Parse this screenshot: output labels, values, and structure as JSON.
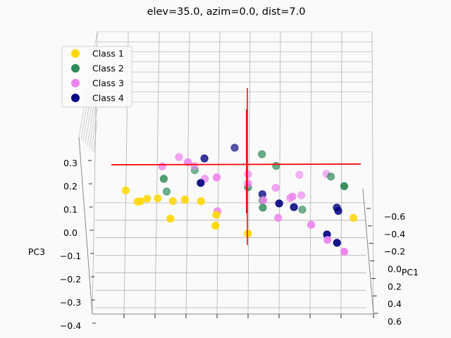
{
  "chart_data": {
    "type": "scatter",
    "projection": "3d",
    "title": "elev=35.0, azim=0.0, dist=7.0",
    "xlabel": "PC1",
    "zlabel": "PC3",
    "x_ticks": [
      "−0.6",
      "−0.4",
      "−0.2",
      "0.0",
      "0.2",
      "0.4",
      "0.6"
    ],
    "z_ticks": [
      "−0.4",
      "−0.3",
      "−0.2",
      "−0.1",
      "0.0",
      "0.1",
      "0.2",
      "0.3"
    ],
    "legend_position": "top-left",
    "colors": {
      "Class 1": "#ffd700",
      "Class 2": "#2e8b57",
      "Class 3": "#ee82ee",
      "Class 4": "#000080",
      "axis_lines": "#ff0000",
      "grid": "#b0b0b0"
    },
    "series": [
      {
        "name": "Class 1",
        "points": [
          [
            -0.05,
            -0.38,
            -0.03
          ],
          [
            0.05,
            -0.3,
            0.04
          ],
          [
            0.1,
            -0.33,
            0.06
          ],
          [
            0.05,
            -0.25,
            0.02
          ],
          [
            0.12,
            -0.35,
            0.05
          ],
          [
            0.15,
            -0.25,
            -0.06
          ],
          [
            0.3,
            -0.1,
            -0.04
          ],
          [
            0.25,
            0.0,
            -0.12
          ],
          [
            0.18,
            -0.15,
            0.08
          ],
          [
            0.2,
            -0.2,
            0.1
          ],
          [
            0.1,
            -0.4,
            0.12
          ],
          [
            0.22,
            -0.1,
            0.0
          ],
          [
            0.05,
            0.35,
            -0.1
          ]
        ]
      },
      {
        "name": "Class 2",
        "points": [
          [
            -0.15,
            0.1,
            0.18
          ],
          [
            0.05,
            -0.28,
            0.18
          ],
          [
            0.25,
            0.3,
            0.22
          ],
          [
            -0.05,
            0.05,
            -0.02
          ],
          [
            -0.25,
            -0.3,
            -0.05
          ],
          [
            -0.1,
            0.0,
            0.05
          ],
          [
            -0.3,
            -0.2,
            0.08
          ],
          [
            -0.25,
            0.2,
            -0.18
          ],
          [
            -0.18,
            0.05,
            0.25
          ],
          [
            -0.2,
            0.3,
            0.08
          ],
          [
            0.0,
            0.05,
            -0.05
          ]
        ]
      },
      {
        "name": "Class 3",
        "points": [
          [
            -0.3,
            0.0,
            0.05
          ],
          [
            -0.4,
            0.2,
            0.0
          ],
          [
            -0.28,
            -0.2,
            0.12
          ],
          [
            -0.2,
            -0.25,
            0.22
          ],
          [
            0.1,
            0.05,
            0.05
          ],
          [
            0.2,
            0.2,
            -0.08
          ],
          [
            0.22,
            0.25,
            -0.18
          ],
          [
            0.25,
            0.3,
            -0.25
          ],
          [
            -0.15,
            0.15,
            -0.05
          ],
          [
            0.05,
            -0.2,
            0.3
          ],
          [
            -0.08,
            -0.15,
            0.12
          ],
          [
            0.18,
            -0.1,
            0.25
          ],
          [
            -0.35,
            0.3,
            0.03
          ],
          [
            0.0,
            0.15,
            0.03
          ],
          [
            -0.05,
            0.0,
            0.1
          ],
          [
            0.1,
            -0.1,
            -0.03
          ],
          [
            -0.2,
            0.1,
            0.0
          ],
          [
            0.05,
            0.1,
            -0.1
          ],
          [
            -0.1,
            -0.3,
            0.2
          ],
          [
            -0.3,
            0.2,
            -0.1
          ]
        ]
      },
      {
        "name": "Class 4",
        "points": [
          [
            -0.05,
            -0.15,
            0.28
          ],
          [
            -0.28,
            -0.05,
            0.25
          ],
          [
            0.1,
            0.15,
            0.0
          ],
          [
            0.2,
            0.25,
            -0.15
          ],
          [
            0.22,
            0.28,
            -0.2
          ],
          [
            0.0,
            0.3,
            -0.05
          ],
          [
            0.05,
            0.3,
            -0.05
          ],
          [
            0.2,
            -0.15,
            0.22
          ],
          [
            -0.1,
            0.05,
            0.0
          ],
          [
            0.15,
            0.1,
            0.05
          ]
        ]
      }
    ]
  }
}
